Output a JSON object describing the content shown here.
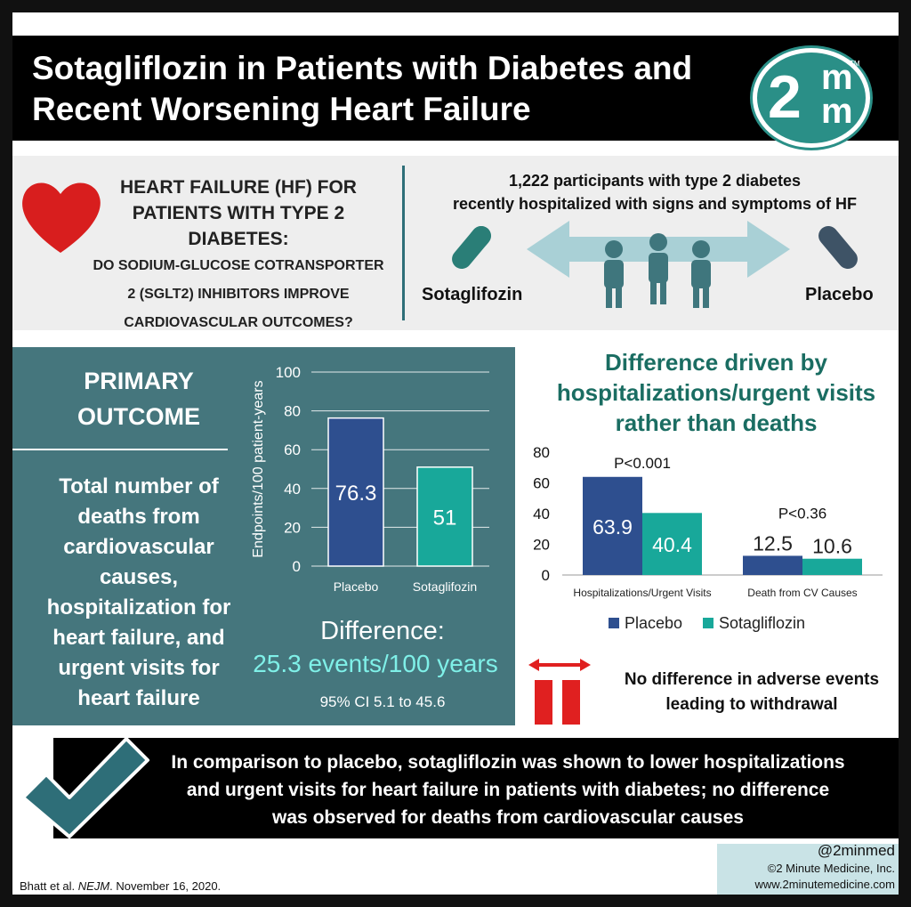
{
  "header": {
    "title_line1": "Sotagliflozin in Patients with Diabetes and",
    "title_line2": "Recent Worsening Heart Failure",
    "logo_big": "2",
    "logo_m1": "m",
    "logo_m2": "m",
    "logo_tm": "TM"
  },
  "question": {
    "line1": "HEART FAILURE (HF) FOR",
    "line2": "PATIENTS WITH TYPE 2",
    "line3": "DIABETES:",
    "line4": "DO SODIUM-GLUCOSE COTRANSPORTER",
    "line5": "2 (SGLT2) INHIBITORS IMPROVE",
    "line6": "CARDIOVASCULAR OUTCOMES?"
  },
  "study": {
    "line1": "1,222 participants with type 2 diabetes",
    "line2": "recently hospitalized with signs and symptoms of HF",
    "arm_left": "Sotaglifozin",
    "arm_right": "Placebo"
  },
  "primary": {
    "title_line1": "PRIMARY",
    "title_line2": "OUTCOME",
    "desc": [
      "Total number of",
      "deaths from",
      "cardiovascular",
      "causes,",
      "hospitalization for",
      "heart failure, and",
      "urgent visits for",
      "heart failure"
    ],
    "difference_label": "Difference:",
    "difference_value": "25.3 events/100 years",
    "ci": "95% CI 5.1 to 45.6"
  },
  "right": {
    "title": [
      "Difference driven by",
      "hospitalizations/urgent visits",
      "rather than deaths"
    ],
    "adverse": [
      "No difference in adverse events",
      "leading to withdrawal"
    ]
  },
  "conclusion": {
    "lines": [
      "In comparison to placebo, sotagliflozin was shown to lower hospitalizations",
      "and urgent visits for heart failure in patients with diabetes; no difference",
      "was observed for deaths from cardiovascular causes"
    ]
  },
  "footer": {
    "citation_authors": "Bhatt et al. ",
    "citation_journal": "NEJM",
    "citation_date": ". November 16, 2020.",
    "handle": "@2minmed",
    "company": "©2 Minute Medicine, Inc.",
    "site": "www.2minutemedicine.com"
  },
  "colors": {
    "placebo": "#2e4f8f",
    "sotagliflozin": "#18a89a",
    "panel": "#45767d",
    "accent_teal": "#2a8f87",
    "red": "#e02020"
  },
  "chart_data": [
    {
      "type": "bar",
      "categories": [
        "Placebo",
        "Sotaglifozin"
      ],
      "values": [
        76.3,
        51
      ],
      "data_labels": [
        "76.3",
        "51"
      ],
      "ylabel": "Endpoints/100 patient-years",
      "yticks": [
        "0",
        "20",
        "40",
        "60",
        "80",
        "100"
      ],
      "ylim": [
        0,
        100
      ],
      "grid": true
    },
    {
      "type": "bar",
      "categories": [
        "Hospitalizations/Urgent Visits",
        "Death from CV Causes"
      ],
      "series": [
        {
          "name": "Placebo",
          "values": [
            63.9,
            12.5
          ],
          "labels": [
            "63.9",
            "12.5"
          ]
        },
        {
          "name": "Sotagliflozin",
          "values": [
            40.4,
            10.6
          ],
          "labels": [
            "40.4",
            "10.6"
          ]
        }
      ],
      "annotations": [
        "P<0.001",
        "P<0.36"
      ],
      "yticks": [
        "0",
        "20",
        "40",
        "60",
        "80"
      ],
      "ylim": [
        0,
        80
      ],
      "legend": "bottom"
    }
  ]
}
